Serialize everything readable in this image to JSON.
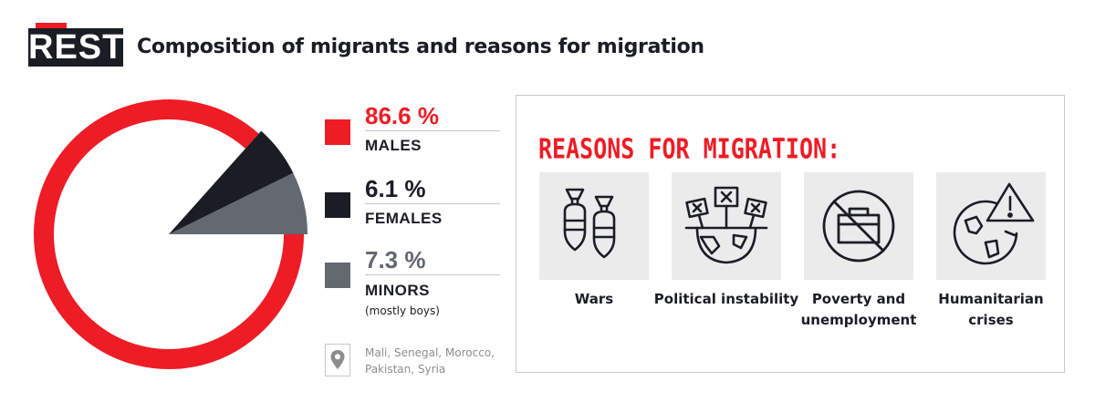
{
  "logo": "REST",
  "title": "Composition of migrants and reasons for migration",
  "chart_data": {
    "type": "pie",
    "title": "",
    "slices": [
      {
        "label": "MALES",
        "value": 86.6,
        "display": "86.6 %",
        "color": "#ee1c25"
      },
      {
        "label": "FEMALES",
        "value": 6.1,
        "display": "6.1 %",
        "color": "#1b1d24"
      },
      {
        "label": "MINORS",
        "value": 7.3,
        "display": "7.3 %",
        "color": "#636871",
        "note": "(mostly boys)"
      }
    ],
    "legend_position": "right"
  },
  "origin": {
    "icon": "location-pin-icon",
    "text": "Mali, Senegal, Morocco, Pakistan, Syria"
  },
  "reasons": {
    "heading": "REASONS FOR MIGRATION:",
    "items": [
      {
        "label": "Wars",
        "icon": "bombs-icon"
      },
      {
        "label": "Political instability",
        "icon": "protest-signs-globe-icon"
      },
      {
        "label": "Poverty and unemployment",
        "icon": "no-briefcase-icon"
      },
      {
        "label": "Humanitarian crises",
        "icon": "globe-warning-icon"
      }
    ]
  },
  "colors": {
    "accent": "#ee1c25",
    "dark": "#1b1d24",
    "gray": "#636871",
    "tile": "#ebebeb",
    "muted": "#8d8d8d"
  }
}
